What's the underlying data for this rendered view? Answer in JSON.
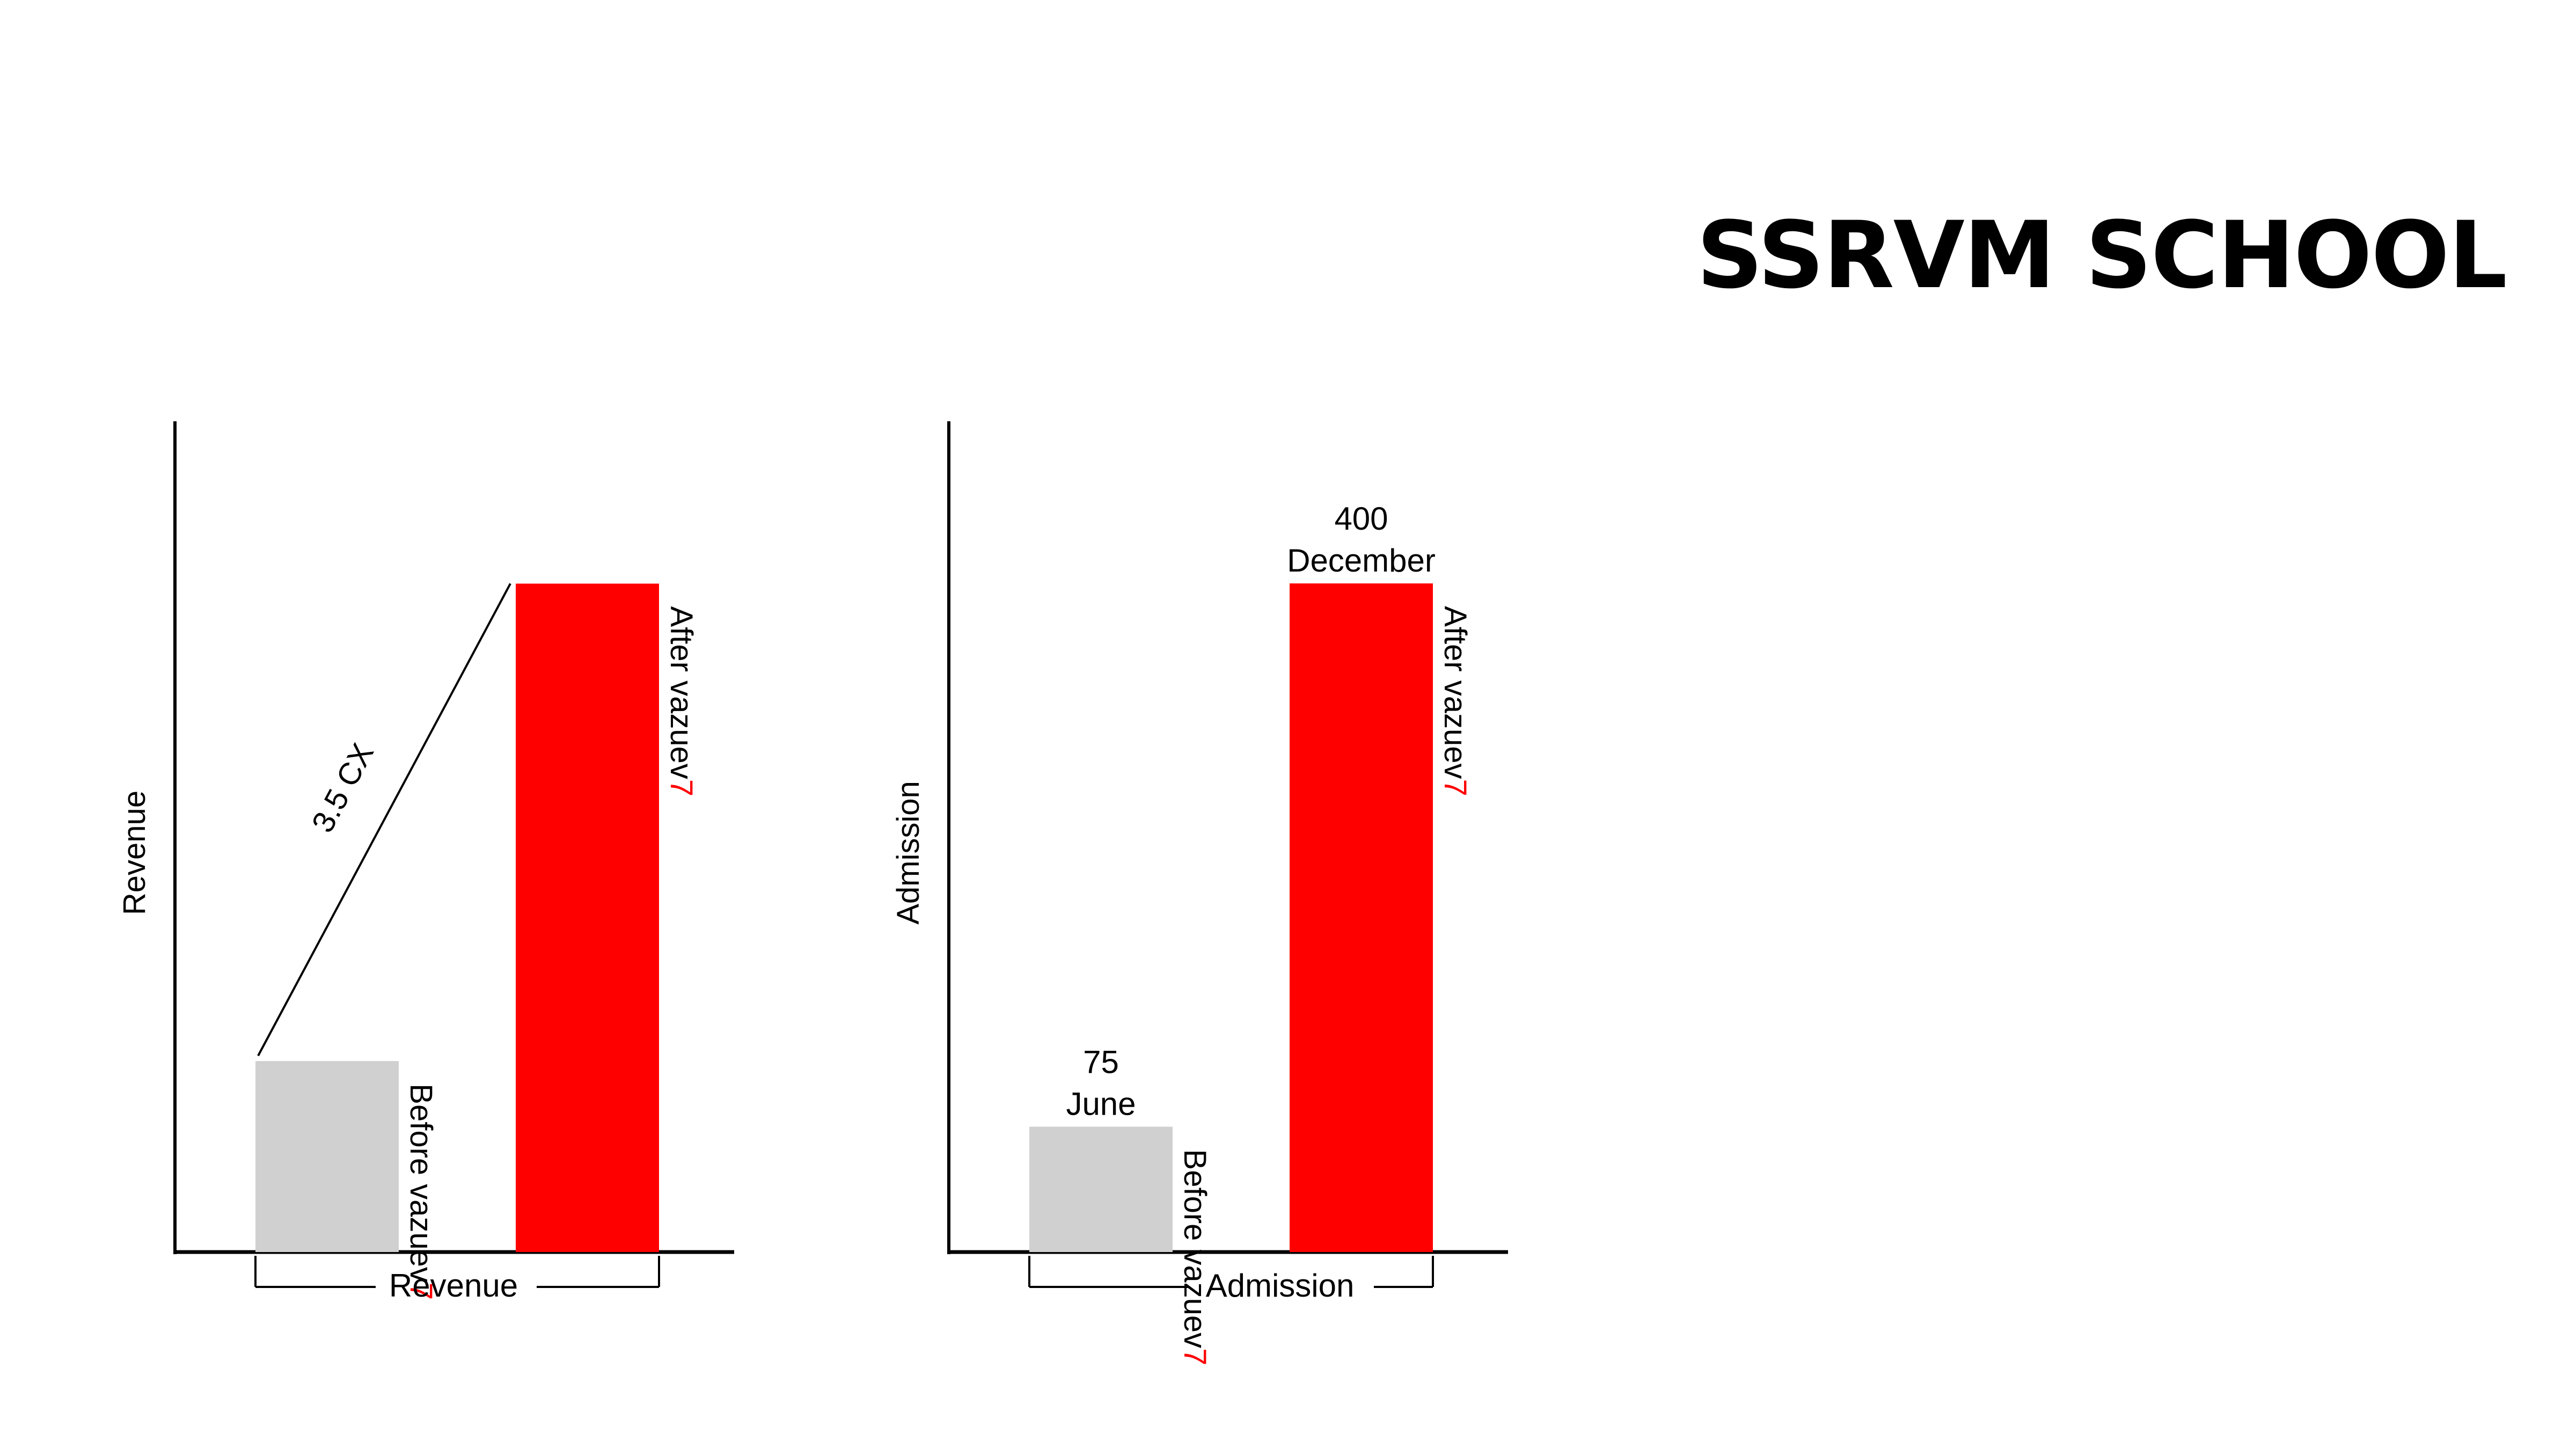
{
  "title": "SSRVM SCHOOL",
  "colors": {
    "before": "#d0d0d0",
    "after": "#ff0000",
    "brand_digit": "#ff0000",
    "axis": "#000000"
  },
  "chart_data": [
    {
      "type": "bar",
      "ylabel": "Revenue",
      "xlabel": "Revenue",
      "categories": [
        "Before vazuev7",
        "After vazuev7"
      ],
      "category_parts": [
        {
          "text": "Before vazuev",
          "accent": "7"
        },
        {
          "text": "After vazuev",
          "accent": "7"
        }
      ],
      "values": [
        1,
        3.5
      ],
      "ylim": [
        0,
        4.35
      ],
      "annotation": "3.5 CX",
      "data_labels": [
        [],
        []
      ],
      "grid": false
    },
    {
      "type": "bar",
      "ylabel": "Admission",
      "xlabel": "Admission",
      "categories": [
        "Before vazuev7",
        "After vazuev7"
      ],
      "category_parts": [
        {
          "text": "Before vazuev",
          "accent": "7"
        },
        {
          "text": "After vazuev",
          "accent": "7"
        }
      ],
      "values": [
        75,
        400
      ],
      "ylim": [
        0,
        497
      ],
      "data_labels": [
        [
          "75",
          "June"
        ],
        [
          "400",
          "December"
        ]
      ],
      "grid": false
    }
  ]
}
